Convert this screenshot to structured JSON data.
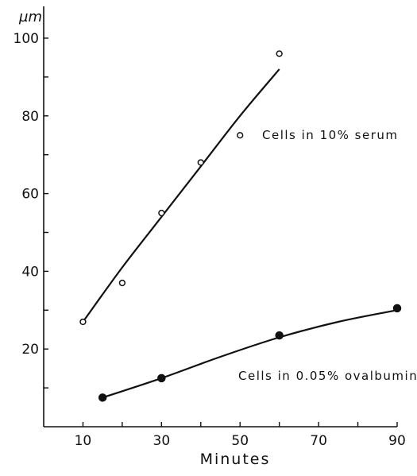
{
  "chart_data": {
    "type": "line",
    "title": "",
    "xlabel": "Minutes",
    "ylabel": "µm",
    "xlim": [
      0,
      90
    ],
    "ylim": [
      0,
      100
    ],
    "x_ticks": [
      10,
      30,
      50,
      70,
      90
    ],
    "y_ticks": [
      20,
      40,
      60,
      80,
      100
    ],
    "grid": false,
    "series": [
      {
        "name": "Cells in 10% serum",
        "marker": "open-circle",
        "points": [
          [
            10,
            27
          ],
          [
            20,
            37
          ],
          [
            30,
            55
          ],
          [
            40,
            68
          ],
          [
            50,
            75
          ],
          [
            60,
            96
          ]
        ],
        "fit_curve": [
          [
            10,
            27
          ],
          [
            20,
            41
          ],
          [
            30,
            54
          ],
          [
            40,
            67
          ],
          [
            50,
            80
          ],
          [
            60,
            92
          ]
        ]
      },
      {
        "name": "Cells in 0.05% ovalbumin",
        "marker": "filled-circle",
        "points": [
          [
            15,
            7.5
          ],
          [
            30,
            12.5
          ],
          [
            60,
            23.5
          ],
          [
            90,
            30.5
          ]
        ],
        "fit_curve": [
          [
            15,
            7.5
          ],
          [
            30,
            12.5
          ],
          [
            45,
            18
          ],
          [
            60,
            23
          ],
          [
            75,
            27
          ],
          [
            90,
            30
          ]
        ]
      }
    ]
  }
}
